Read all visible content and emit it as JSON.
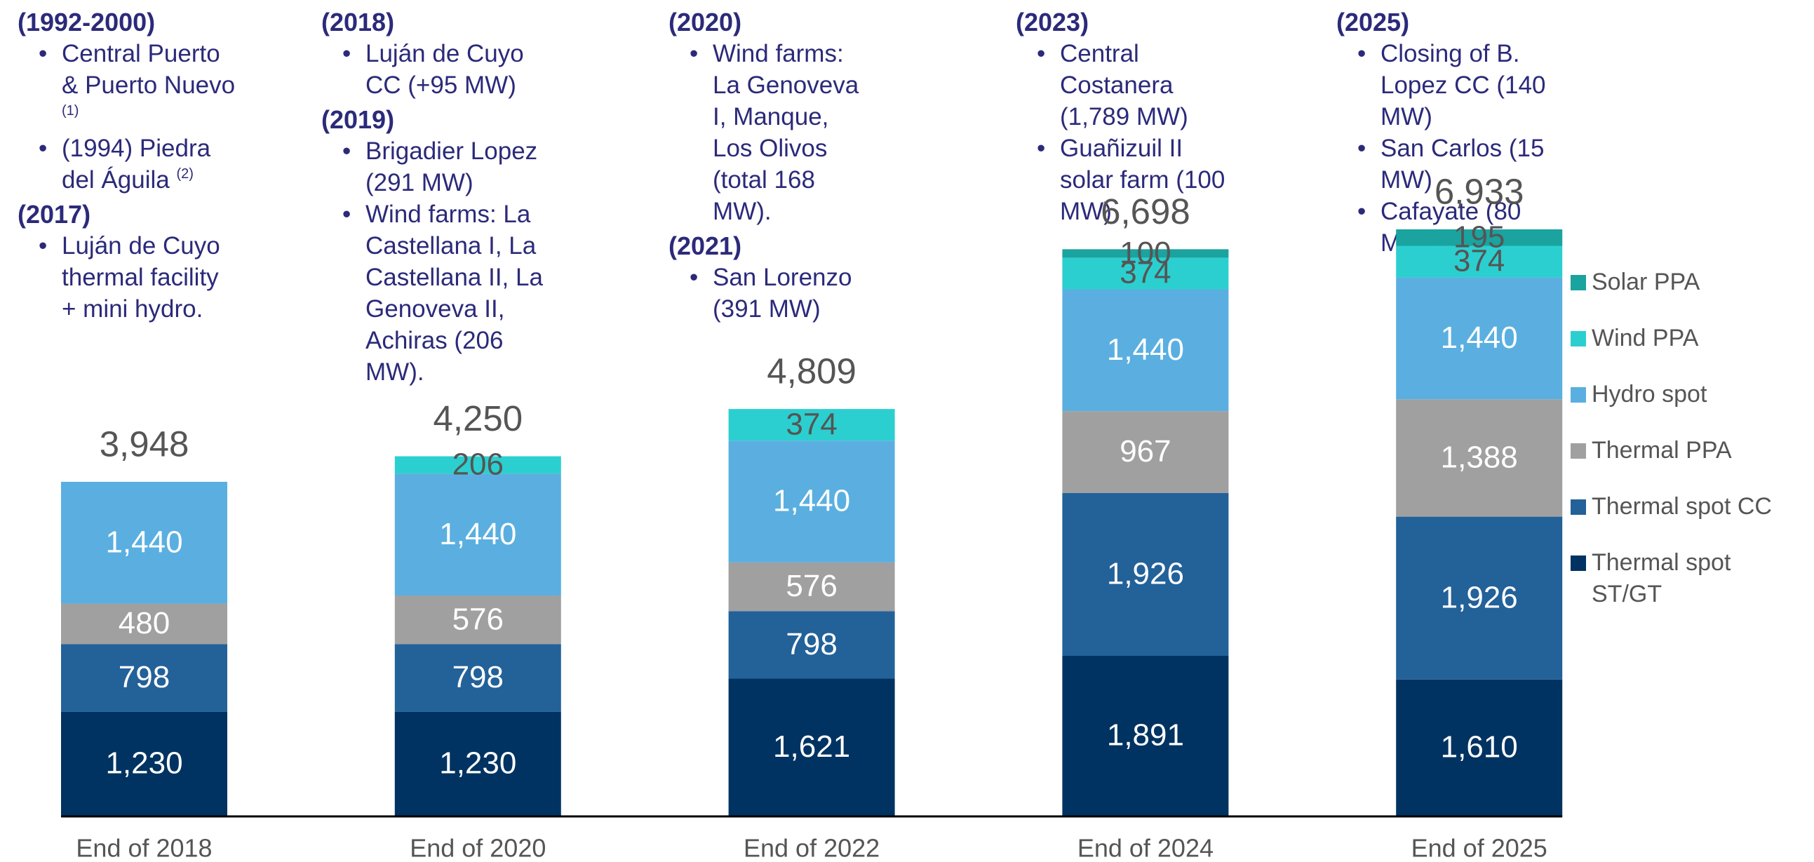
{
  "chart_data": {
    "type": "stacked_bar",
    "categories": [
      "End of 2018",
      "End of 2020",
      "End of 2022",
      "End of 2024",
      "End of 2025"
    ],
    "series": [
      {
        "name": "Thermal spot ST/GT",
        "color": "#003361",
        "label_color": "#ffffff",
        "values": [
          1230,
          1230,
          1621,
          1891,
          1610
        ]
      },
      {
        "name": "Thermal spot CC",
        "color": "#236199",
        "label_color": "#ffffff",
        "values": [
          798,
          798,
          798,
          1926,
          1926
        ]
      },
      {
        "name": "Thermal PPA",
        "color": "#a0a0a0",
        "label_color": "#ffffff",
        "values": [
          480,
          576,
          576,
          967,
          1388
        ]
      },
      {
        "name": "Hydro spot",
        "color": "#5aafe0",
        "label_color": "#ffffff",
        "values": [
          1440,
          1440,
          1440,
          1440,
          1440
        ]
      },
      {
        "name": "Wind PPA",
        "color": "#2ccfcf",
        "label_color": "#555555",
        "values": [
          null,
          206,
          374,
          374,
          374
        ]
      },
      {
        "name": "Solar PPA",
        "color": "#1aa39f",
        "label_color": "#555555",
        "values": [
          null,
          null,
          null,
          100,
          195
        ]
      }
    ],
    "totals": [
      3948,
      4250,
      4809,
      6698,
      6933
    ],
    "value_labels": [
      "1,230",
      "798",
      "480",
      "1,440"
    ],
    "series_labels": [
      [
        "1,230",
        "1,230",
        "1,621",
        "1,891",
        "1,610"
      ],
      [
        "798",
        "798",
        "798",
        "1,926",
        "1,926"
      ],
      [
        "480",
        "576",
        "576",
        "967",
        "1,388"
      ],
      [
        "1,440",
        "1,440",
        "1,440",
        "1,440",
        "1,440"
      ],
      [
        null,
        "206",
        "374",
        "374",
        "374"
      ],
      [
        null,
        null,
        null,
        "100",
        "195"
      ]
    ],
    "total_labels": [
      "3,948",
      "4,250",
      "4,809",
      "6,698",
      "6,933"
    ],
    "annotations": [
      [
        {
          "heading": "(1992-2000)",
          "items": [
            {
              "text": "Central Puerto & Puerto Nuevo",
              "note": "(1)"
            },
            {
              "text": "(1994) Piedra del Águila",
              "note": "(2)"
            }
          ]
        },
        {
          "heading": "(2017)",
          "items": [
            {
              "text": "Luján de Cuyo thermal facility + mini hydro."
            }
          ]
        }
      ],
      [
        {
          "heading": "(2018)",
          "items": [
            {
              "text": "Luján de Cuyo CC (+95 MW)"
            }
          ]
        },
        {
          "heading": "(2019)",
          "items": [
            {
              "text": "Brigadier Lopez (291 MW)"
            },
            {
              "text": "Wind farms: La Castellana I, La Castellana II, La Genoveva II, Achiras (206 MW)."
            }
          ]
        }
      ],
      [
        {
          "heading": "(2020)",
          "items": [
            {
              "text": "Wind farms: La Genoveva I, Manque, Los Olivos (total 168 MW)."
            }
          ]
        },
        {
          "heading": "(2021)",
          "items": [
            {
              "text": "San Lorenzo (391 MW)"
            }
          ]
        }
      ],
      [
        {
          "heading": "(2023)",
          "items": [
            {
              "text": "Central Costanera (1,789 MW)"
            },
            {
              "text": "Guañizuil II solar farm (100 MW)"
            }
          ]
        }
      ],
      [
        {
          "heading": "(2025)",
          "items": [
            {
              "text": "Closing of B. Lopez CC (140 MW)"
            },
            {
              "text": "San Carlos (15 MW)"
            },
            {
              "text": "Cafayate (80 MW)"
            }
          ]
        }
      ]
    ]
  }
}
